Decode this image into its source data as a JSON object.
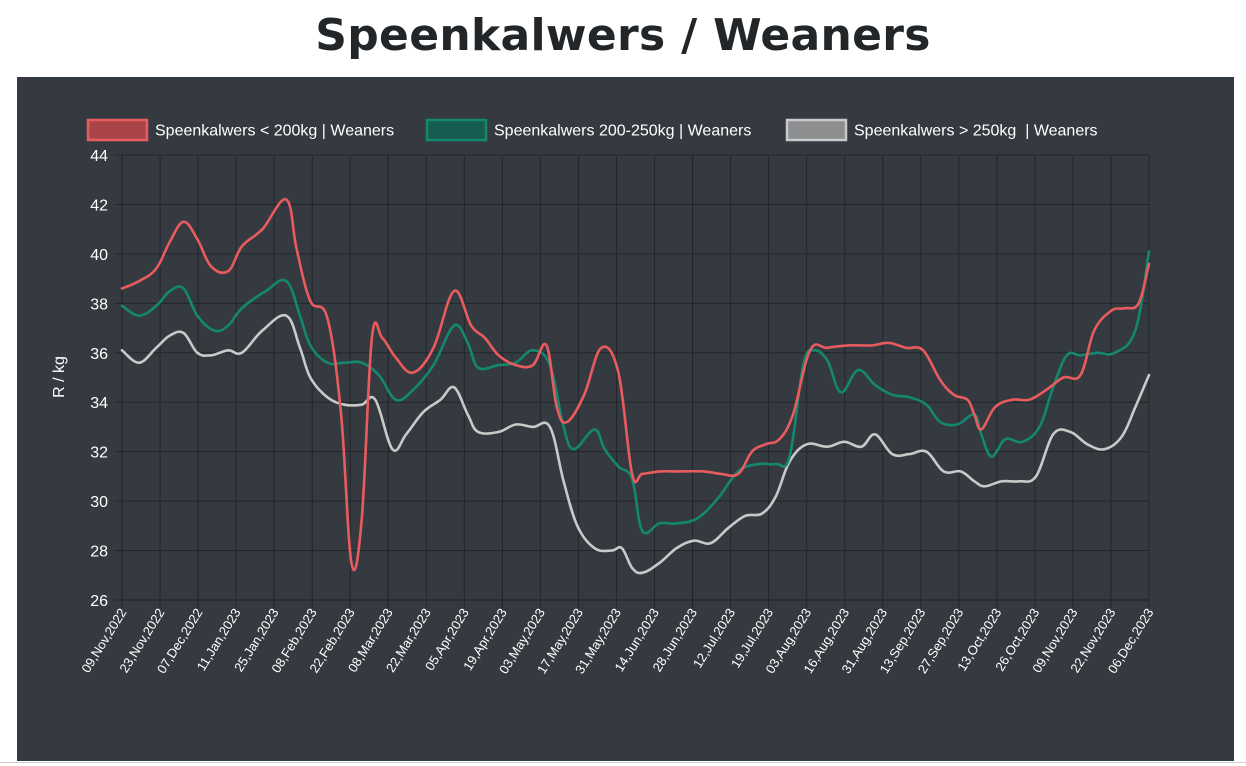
{
  "page": {
    "title": "Speenkalwers / Weaners"
  },
  "chart_data": {
    "type": "line",
    "title": "Speenkalwers / Weaners",
    "ylabel": "R / kg",
    "xlabel": "",
    "ylim": [
      26,
      44
    ],
    "y_ticks": [
      26,
      28,
      30,
      32,
      34,
      36,
      38,
      40,
      42,
      44
    ],
    "grid": true,
    "legend_position": "top",
    "background": "#343a40",
    "x_tick_labels": [
      "09,Nov,2022",
      "23,Nov,2022",
      "07,Dec,2022",
      "11,Jan,2023",
      "25,Jan,2023",
      "08,Feb,2023",
      "22,Feb,2023",
      "08,Mar,2023",
      "22,Mar,2023",
      "05,Apr,2023",
      "19,Apr,2023",
      "03,May,2023",
      "17,May,2023",
      "31,May,2023",
      "14,Jun,2023",
      "28,Jun,2023",
      "12,Jul,2023",
      "19,Jul,2023",
      "03,Aug,2023",
      "16,Aug,2023",
      "31,Aug,2023",
      "13,Sep,2023",
      "27,Sep,2023",
      "13,Oct,2023",
      "26,Oct,2023",
      "09,Nov,2023",
      "22,Nov,2023",
      "06,Dec,2023"
    ],
    "series": [
      {
        "name": "Speenkalwers < 200kg | Weaners",
        "color": "#e95c5e",
        "fill": "#a94549",
        "points": [
          [
            0,
            38.6
          ],
          [
            0.25,
            38.9
          ],
          [
            0.5,
            39.4
          ],
          [
            0.7,
            40.5
          ],
          [
            0.9,
            41.3
          ],
          [
            1.1,
            40.6
          ],
          [
            1.3,
            39.5
          ],
          [
            1.55,
            39.3
          ],
          [
            1.75,
            40.3
          ],
          [
            2.05,
            41.0
          ],
          [
            2.4,
            42.2
          ],
          [
            2.55,
            40.2
          ],
          [
            2.75,
            38.1
          ],
          [
            3.0,
            37.4
          ],
          [
            3.2,
            33.5
          ],
          [
            3.35,
            27.5
          ],
          [
            3.5,
            29.2
          ],
          [
            3.65,
            36.6
          ],
          [
            3.8,
            36.6
          ],
          [
            4.0,
            35.8
          ],
          [
            4.25,
            35.2
          ],
          [
            4.55,
            36.2
          ],
          [
            4.85,
            38.5
          ],
          [
            5.1,
            37.1
          ],
          [
            5.3,
            36.6
          ],
          [
            5.5,
            35.9
          ],
          [
            5.75,
            35.5
          ],
          [
            6.0,
            35.5
          ],
          [
            6.2,
            36.3
          ],
          [
            6.35,
            33.8
          ],
          [
            6.5,
            33.2
          ],
          [
            6.75,
            34.3
          ],
          [
            7.0,
            36.2
          ],
          [
            7.25,
            35.2
          ],
          [
            7.45,
            31.1
          ],
          [
            7.6,
            31.1
          ],
          [
            7.85,
            31.2
          ],
          [
            8.1,
            31.2
          ],
          [
            8.5,
            31.2
          ],
          [
            8.75,
            31.1
          ],
          [
            9.0,
            31.1
          ],
          [
            9.2,
            32.0
          ],
          [
            9.4,
            32.3
          ],
          [
            9.6,
            32.5
          ],
          [
            9.8,
            33.5
          ],
          [
            10.05,
            36.1
          ],
          [
            10.3,
            36.2
          ],
          [
            10.6,
            36.3
          ],
          [
            10.95,
            36.3
          ],
          [
            11.2,
            36.4
          ],
          [
            11.45,
            36.2
          ],
          [
            11.7,
            36.1
          ],
          [
            11.95,
            34.9
          ],
          [
            12.15,
            34.3
          ],
          [
            12.35,
            34.1
          ],
          [
            12.45,
            33.5
          ],
          [
            12.55,
            32.9
          ],
          [
            12.75,
            33.8
          ],
          [
            13.0,
            34.1
          ],
          [
            13.25,
            34.1
          ],
          [
            13.5,
            34.5
          ],
          [
            13.75,
            35.0
          ],
          [
            14.0,
            35.1
          ],
          [
            14.2,
            36.9
          ],
          [
            14.45,
            37.7
          ],
          [
            14.65,
            37.8
          ],
          [
            14.85,
            38.0
          ],
          [
            15.0,
            39.6
          ]
        ]
      },
      {
        "name": "Speenkalwers 200-250kg | Weaners",
        "color": "#14876f",
        "fill": "#175c50",
        "points": [
          [
            0,
            37.9
          ],
          [
            0.25,
            37.5
          ],
          [
            0.5,
            37.9
          ],
          [
            0.7,
            38.5
          ],
          [
            0.9,
            38.6
          ],
          [
            1.1,
            37.5
          ],
          [
            1.35,
            36.9
          ],
          [
            1.55,
            37.1
          ],
          [
            1.75,
            37.8
          ],
          [
            2.1,
            38.5
          ],
          [
            2.4,
            38.9
          ],
          [
            2.6,
            37.5
          ],
          [
            2.75,
            36.3
          ],
          [
            3.0,
            35.6
          ],
          [
            3.25,
            35.6
          ],
          [
            3.5,
            35.6
          ],
          [
            3.75,
            35.1
          ],
          [
            4.0,
            34.1
          ],
          [
            4.25,
            34.5
          ],
          [
            4.55,
            35.5
          ],
          [
            4.85,
            37.1
          ],
          [
            5.05,
            36.4
          ],
          [
            5.2,
            35.4
          ],
          [
            5.5,
            35.5
          ],
          [
            5.75,
            35.6
          ],
          [
            6.0,
            36.1
          ],
          [
            6.25,
            35.5
          ],
          [
            6.45,
            33.0
          ],
          [
            6.6,
            32.1
          ],
          [
            6.9,
            32.9
          ],
          [
            7.05,
            32.1
          ],
          [
            7.25,
            31.4
          ],
          [
            7.45,
            30.9
          ],
          [
            7.6,
            28.8
          ],
          [
            7.85,
            29.1
          ],
          [
            8.1,
            29.1
          ],
          [
            8.4,
            29.3
          ],
          [
            8.7,
            30.1
          ],
          [
            9.0,
            31.2
          ],
          [
            9.3,
            31.5
          ],
          [
            9.55,
            31.5
          ],
          [
            9.75,
            31.8
          ],
          [
            9.95,
            35.5
          ],
          [
            10.1,
            36.1
          ],
          [
            10.3,
            35.7
          ],
          [
            10.5,
            34.4
          ],
          [
            10.75,
            35.3
          ],
          [
            11.0,
            34.7
          ],
          [
            11.25,
            34.3
          ],
          [
            11.5,
            34.2
          ],
          [
            11.75,
            33.9
          ],
          [
            11.95,
            33.2
          ],
          [
            12.2,
            33.1
          ],
          [
            12.45,
            33.5
          ],
          [
            12.55,
            32.7
          ],
          [
            12.7,
            31.8
          ],
          [
            12.9,
            32.5
          ],
          [
            13.15,
            32.4
          ],
          [
            13.4,
            33.0
          ],
          [
            13.6,
            34.6
          ],
          [
            13.8,
            35.9
          ],
          [
            14.0,
            35.9
          ],
          [
            14.25,
            36.0
          ],
          [
            14.5,
            36.0
          ],
          [
            14.8,
            36.9
          ],
          [
            15.0,
            40.1
          ]
        ]
      },
      {
        "name": "Speenkalwers > 250kg  | Weaners",
        "color": "#c9c9c9",
        "fill": "#8c8e90",
        "points": [
          [
            0,
            36.1
          ],
          [
            0.25,
            35.6
          ],
          [
            0.5,
            36.2
          ],
          [
            0.7,
            36.7
          ],
          [
            0.9,
            36.8
          ],
          [
            1.1,
            36.0
          ],
          [
            1.3,
            35.9
          ],
          [
            1.55,
            36.1
          ],
          [
            1.75,
            36.0
          ],
          [
            2.05,
            36.9
          ],
          [
            2.4,
            37.5
          ],
          [
            2.6,
            36.2
          ],
          [
            2.75,
            35.0
          ],
          [
            3.0,
            34.2
          ],
          [
            3.25,
            33.9
          ],
          [
            3.5,
            33.9
          ],
          [
            3.7,
            34.1
          ],
          [
            3.95,
            32.1
          ],
          [
            4.15,
            32.7
          ],
          [
            4.4,
            33.6
          ],
          [
            4.65,
            34.1
          ],
          [
            4.85,
            34.6
          ],
          [
            5.05,
            33.5
          ],
          [
            5.2,
            32.8
          ],
          [
            5.5,
            32.8
          ],
          [
            5.75,
            33.1
          ],
          [
            6.0,
            33.0
          ],
          [
            6.25,
            33.0
          ],
          [
            6.45,
            30.8
          ],
          [
            6.65,
            29.0
          ],
          [
            6.9,
            28.1
          ],
          [
            7.15,
            28.0
          ],
          [
            7.3,
            28.1
          ],
          [
            7.45,
            27.3
          ],
          [
            7.6,
            27.1
          ],
          [
            7.85,
            27.5
          ],
          [
            8.1,
            28.1
          ],
          [
            8.35,
            28.4
          ],
          [
            8.6,
            28.3
          ],
          [
            8.85,
            28.9
          ],
          [
            9.1,
            29.4
          ],
          [
            9.35,
            29.5
          ],
          [
            9.55,
            30.2
          ],
          [
            9.75,
            31.6
          ],
          [
            10.0,
            32.3
          ],
          [
            10.3,
            32.2
          ],
          [
            10.55,
            32.4
          ],
          [
            10.8,
            32.2
          ],
          [
            11.0,
            32.7
          ],
          [
            11.25,
            31.9
          ],
          [
            11.5,
            31.9
          ],
          [
            11.75,
            32.0
          ],
          [
            12.0,
            31.2
          ],
          [
            12.25,
            31.2
          ],
          [
            12.45,
            30.8
          ],
          [
            12.6,
            30.6
          ],
          [
            12.85,
            30.8
          ],
          [
            13.1,
            30.8
          ],
          [
            13.35,
            31.0
          ],
          [
            13.6,
            32.7
          ],
          [
            13.85,
            32.8
          ],
          [
            14.1,
            32.3
          ],
          [
            14.35,
            32.1
          ],
          [
            14.6,
            32.6
          ],
          [
            14.8,
            33.8
          ],
          [
            15.0,
            35.1
          ]
        ]
      }
    ]
  }
}
